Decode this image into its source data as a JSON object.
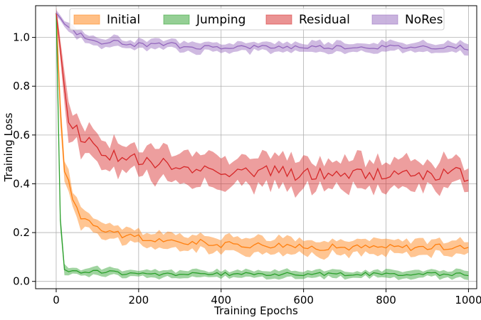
{
  "chart_data": {
    "type": "line",
    "title": "",
    "xlabel": "Training Epochs",
    "ylabel": "Training Loss",
    "xlim": [
      -50,
      1020
    ],
    "ylim": [
      -0.03,
      1.13
    ],
    "xticks": [
      0,
      200,
      400,
      600,
      800,
      1000
    ],
    "yticks": [
      0.0,
      0.2,
      0.4,
      0.6,
      0.8,
      1.0
    ],
    "xtick_labels": [
      "0",
      "200",
      "400",
      "600",
      "800",
      "1000"
    ],
    "ytick_labels": [
      "0.0",
      "0.2",
      "0.4",
      "0.6",
      "0.8",
      "1.0"
    ],
    "grid": true,
    "legend_position": "top",
    "x_step": 10,
    "series": [
      {
        "name": "Initial",
        "color": "#ff7f0e",
        "mean": [
          1.1,
          0.7,
          0.47,
          0.4,
          0.34,
          0.3,
          0.27,
          0.26,
          0.25,
          0.24,
          0.23,
          0.22,
          0.21,
          0.21,
          0.2,
          0.2,
          0.19,
          0.19,
          0.18,
          0.18,
          0.18,
          0.17,
          0.17,
          0.17,
          0.17,
          0.17,
          0.17,
          0.16,
          0.16,
          0.16,
          0.16,
          0.16,
          0.16,
          0.16,
          0.16,
          0.16,
          0.16,
          0.16,
          0.15,
          0.15,
          0.15,
          0.15,
          0.15,
          0.15,
          0.15,
          0.15,
          0.15,
          0.15,
          0.15,
          0.15,
          0.15,
          0.15,
          0.15,
          0.15,
          0.15,
          0.15,
          0.15,
          0.15,
          0.14,
          0.14,
          0.14,
          0.14,
          0.14,
          0.14,
          0.14,
          0.14,
          0.14,
          0.14,
          0.14,
          0.14,
          0.14,
          0.14,
          0.14,
          0.14,
          0.14,
          0.14,
          0.14,
          0.14,
          0.14,
          0.14,
          0.14,
          0.14,
          0.14,
          0.14,
          0.14,
          0.14,
          0.14,
          0.14,
          0.14,
          0.14,
          0.14,
          0.14,
          0.14,
          0.14,
          0.14,
          0.14,
          0.14,
          0.14,
          0.14,
          0.14,
          0.13
        ],
        "spread": [
          0.02,
          0.05,
          0.05,
          0.04,
          0.04,
          0.04,
          0.04,
          0.03,
          0.03,
          0.03,
          0.03,
          0.03,
          0.03,
          0.03,
          0.03,
          0.03,
          0.03,
          0.03,
          0.03,
          0.03,
          0.03,
          0.03,
          0.03,
          0.03,
          0.03,
          0.03,
          0.03,
          0.03,
          0.03,
          0.03,
          0.03,
          0.03,
          0.03,
          0.03,
          0.03,
          0.03,
          0.03,
          0.03,
          0.03,
          0.03,
          0.03,
          0.03,
          0.03,
          0.03,
          0.03,
          0.03,
          0.03,
          0.03,
          0.03,
          0.03,
          0.03,
          0.03,
          0.03,
          0.03,
          0.03,
          0.03,
          0.03,
          0.03,
          0.03,
          0.03,
          0.03,
          0.03,
          0.03,
          0.03,
          0.03,
          0.03,
          0.03,
          0.03,
          0.03,
          0.03,
          0.03,
          0.03,
          0.03,
          0.03,
          0.03,
          0.03,
          0.03,
          0.03,
          0.03,
          0.03,
          0.03,
          0.03,
          0.03,
          0.03,
          0.03,
          0.03,
          0.03,
          0.03,
          0.03,
          0.03,
          0.03,
          0.03,
          0.03,
          0.03,
          0.03,
          0.03,
          0.03,
          0.03,
          0.03,
          0.03,
          0.03
        ]
      },
      {
        "name": "Jumping",
        "color": "#2ca02c",
        "mean": [
          1.1,
          0.25,
          0.05,
          0.04,
          0.04,
          0.04,
          0.04,
          0.04,
          0.04,
          0.04,
          0.04,
          0.04,
          0.04,
          0.04,
          0.04,
          0.04,
          0.03,
          0.03,
          0.03,
          0.03,
          0.03,
          0.03,
          0.03,
          0.03,
          0.03,
          0.03,
          0.03,
          0.03,
          0.03,
          0.03,
          0.03,
          0.03,
          0.03,
          0.03,
          0.03,
          0.03,
          0.03,
          0.03,
          0.03,
          0.03,
          0.03,
          0.03,
          0.03,
          0.03,
          0.03,
          0.03,
          0.03,
          0.03,
          0.03,
          0.03,
          0.03,
          0.03,
          0.03,
          0.03,
          0.03,
          0.03,
          0.03,
          0.03,
          0.03,
          0.03,
          0.03,
          0.03,
          0.03,
          0.03,
          0.03,
          0.03,
          0.03,
          0.03,
          0.03,
          0.03,
          0.03,
          0.03,
          0.03,
          0.03,
          0.03,
          0.03,
          0.03,
          0.03,
          0.03,
          0.03,
          0.03,
          0.03,
          0.03,
          0.03,
          0.03,
          0.03,
          0.03,
          0.03,
          0.03,
          0.03,
          0.03,
          0.03,
          0.03,
          0.03,
          0.03,
          0.03,
          0.03,
          0.03,
          0.03,
          0.03,
          0.03
        ],
        "spread": [
          0.01,
          0.04,
          0.02,
          0.02,
          0.015,
          0.015,
          0.015,
          0.015,
          0.015,
          0.015,
          0.015,
          0.015,
          0.015,
          0.015,
          0.015,
          0.015,
          0.015,
          0.015,
          0.015,
          0.015,
          0.015,
          0.015,
          0.015,
          0.015,
          0.015,
          0.015,
          0.015,
          0.015,
          0.015,
          0.015,
          0.015,
          0.015,
          0.015,
          0.015,
          0.015,
          0.015,
          0.015,
          0.015,
          0.015,
          0.015,
          0.015,
          0.015,
          0.015,
          0.015,
          0.015,
          0.015,
          0.015,
          0.015,
          0.015,
          0.015,
          0.015,
          0.015,
          0.015,
          0.015,
          0.015,
          0.015,
          0.015,
          0.015,
          0.015,
          0.015,
          0.015,
          0.015,
          0.015,
          0.015,
          0.015,
          0.015,
          0.015,
          0.015,
          0.015,
          0.015,
          0.015,
          0.015,
          0.015,
          0.015,
          0.015,
          0.015,
          0.015,
          0.015,
          0.015,
          0.015,
          0.015,
          0.015,
          0.015,
          0.015,
          0.015,
          0.015,
          0.015,
          0.015,
          0.015,
          0.015,
          0.015,
          0.015,
          0.015,
          0.015,
          0.015,
          0.015,
          0.015,
          0.015,
          0.015,
          0.015,
          0.015
        ]
      },
      {
        "name": "Residual",
        "color": "#d62728",
        "mean": [
          1.1,
          0.95,
          0.78,
          0.68,
          0.64,
          0.62,
          0.6,
          0.58,
          0.57,
          0.56,
          0.55,
          0.54,
          0.53,
          0.52,
          0.52,
          0.51,
          0.51,
          0.5,
          0.5,
          0.5,
          0.49,
          0.49,
          0.49,
          0.48,
          0.48,
          0.48,
          0.48,
          0.47,
          0.47,
          0.47,
          0.47,
          0.47,
          0.47,
          0.46,
          0.46,
          0.46,
          0.46,
          0.46,
          0.46,
          0.46,
          0.46,
          0.46,
          0.45,
          0.45,
          0.45,
          0.45,
          0.45,
          0.45,
          0.45,
          0.45,
          0.45,
          0.45,
          0.45,
          0.45,
          0.45,
          0.45,
          0.44,
          0.44,
          0.44,
          0.44,
          0.44,
          0.44,
          0.44,
          0.44,
          0.44,
          0.44,
          0.44,
          0.44,
          0.44,
          0.44,
          0.44,
          0.44,
          0.44,
          0.44,
          0.44,
          0.44,
          0.44,
          0.44,
          0.44,
          0.44,
          0.44,
          0.44,
          0.44,
          0.44,
          0.44,
          0.44,
          0.44,
          0.44,
          0.44,
          0.44,
          0.44,
          0.44,
          0.44,
          0.44,
          0.44,
          0.44,
          0.44,
          0.44,
          0.44,
          0.43,
          0.43
        ],
        "spread": [
          0.02,
          0.04,
          0.06,
          0.07,
          0.06,
          0.06,
          0.06,
          0.06,
          0.06,
          0.06,
          0.06,
          0.06,
          0.06,
          0.06,
          0.06,
          0.06,
          0.06,
          0.06,
          0.06,
          0.06,
          0.06,
          0.06,
          0.06,
          0.06,
          0.06,
          0.06,
          0.06,
          0.06,
          0.06,
          0.06,
          0.06,
          0.06,
          0.06,
          0.06,
          0.06,
          0.06,
          0.06,
          0.06,
          0.06,
          0.06,
          0.06,
          0.06,
          0.06,
          0.06,
          0.06,
          0.06,
          0.06,
          0.06,
          0.06,
          0.06,
          0.06,
          0.06,
          0.06,
          0.06,
          0.06,
          0.06,
          0.06,
          0.06,
          0.06,
          0.06,
          0.06,
          0.06,
          0.06,
          0.06,
          0.06,
          0.06,
          0.06,
          0.06,
          0.06,
          0.06,
          0.06,
          0.06,
          0.06,
          0.06,
          0.06,
          0.06,
          0.06,
          0.06,
          0.06,
          0.06,
          0.06,
          0.06,
          0.06,
          0.06,
          0.06,
          0.06,
          0.06,
          0.06,
          0.06,
          0.06,
          0.06,
          0.06,
          0.06,
          0.06,
          0.06,
          0.06,
          0.06,
          0.06,
          0.06,
          0.06,
          0.06
        ]
      },
      {
        "name": "NoRes",
        "color": "#9467bd",
        "mean": [
          1.1,
          1.08,
          1.06,
          1.04,
          1.03,
          1.02,
          1.01,
          1.0,
          0.99,
          0.99,
          0.99,
          0.98,
          0.98,
          0.98,
          0.98,
          0.98,
          0.97,
          0.97,
          0.97,
          0.97,
          0.97,
          0.97,
          0.97,
          0.97,
          0.97,
          0.97,
          0.97,
          0.97,
          0.97,
          0.97,
          0.96,
          0.96,
          0.96,
          0.96,
          0.96,
          0.96,
          0.96,
          0.96,
          0.96,
          0.96,
          0.96,
          0.96,
          0.96,
          0.96,
          0.96,
          0.96,
          0.96,
          0.96,
          0.96,
          0.96,
          0.96,
          0.96,
          0.96,
          0.96,
          0.96,
          0.96,
          0.96,
          0.96,
          0.96,
          0.96,
          0.96,
          0.96,
          0.96,
          0.96,
          0.96,
          0.96,
          0.96,
          0.96,
          0.96,
          0.96,
          0.96,
          0.96,
          0.96,
          0.96,
          0.96,
          0.96,
          0.96,
          0.96,
          0.96,
          0.96,
          0.96,
          0.96,
          0.96,
          0.96,
          0.96,
          0.96,
          0.96,
          0.96,
          0.96,
          0.96,
          0.96,
          0.96,
          0.96,
          0.96,
          0.96,
          0.96,
          0.96,
          0.96,
          0.96,
          0.96,
          0.95
        ],
        "spread": [
          0.01,
          0.01,
          0.015,
          0.02,
          0.02,
          0.02,
          0.02,
          0.02,
          0.02,
          0.02,
          0.02,
          0.02,
          0.02,
          0.02,
          0.02,
          0.02,
          0.02,
          0.02,
          0.02,
          0.02,
          0.02,
          0.02,
          0.02,
          0.02,
          0.02,
          0.02,
          0.02,
          0.02,
          0.02,
          0.02,
          0.02,
          0.02,
          0.02,
          0.02,
          0.02,
          0.02,
          0.02,
          0.02,
          0.02,
          0.02,
          0.02,
          0.02,
          0.02,
          0.02,
          0.02,
          0.02,
          0.02,
          0.02,
          0.02,
          0.02,
          0.02,
          0.02,
          0.02,
          0.02,
          0.02,
          0.02,
          0.02,
          0.02,
          0.02,
          0.02,
          0.02,
          0.02,
          0.02,
          0.02,
          0.02,
          0.02,
          0.02,
          0.02,
          0.02,
          0.02,
          0.02,
          0.02,
          0.02,
          0.02,
          0.02,
          0.02,
          0.02,
          0.02,
          0.02,
          0.02,
          0.02,
          0.02,
          0.02,
          0.02,
          0.02,
          0.02,
          0.02,
          0.02,
          0.02,
          0.02,
          0.02,
          0.02,
          0.02,
          0.02,
          0.02,
          0.02,
          0.02,
          0.02,
          0.02,
          0.02,
          0.02
        ]
      }
    ]
  }
}
